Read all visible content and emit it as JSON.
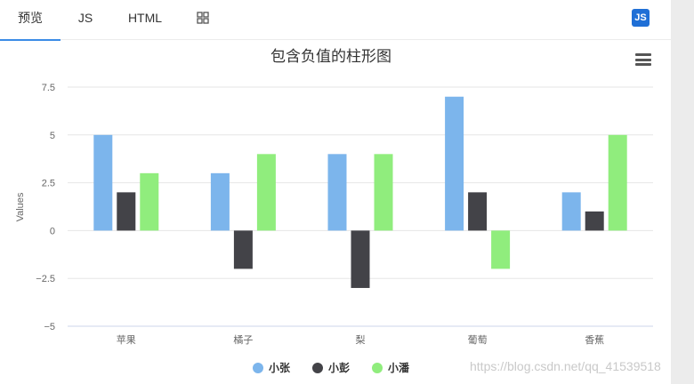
{
  "tabs": [
    {
      "label": "预览",
      "active": true
    },
    {
      "label": "JS",
      "active": false
    },
    {
      "label": "HTML",
      "active": false
    },
    {
      "label": "",
      "icon": "grid-icon",
      "active": false
    }
  ],
  "badge": {
    "label": "JS",
    "color": "#1f6fd6"
  },
  "menu_icon": "menu-icon",
  "watermark": "https://blog.csdn.net/qq_41539518",
  "chart_data": {
    "type": "bar",
    "title": "包含负值的柱形图",
    "ylabel": "Values",
    "xlabel": "",
    "categories": [
      "苹果",
      "橘子",
      "梨",
      "葡萄",
      "香蕉"
    ],
    "ylim": [
      -5,
      7.5
    ],
    "yticks": [
      -5,
      -2.5,
      0,
      2.5,
      5,
      7.5
    ],
    "ytick_labels": [
      "−5",
      "−2.5",
      "0",
      "2.5",
      "5",
      "7.5"
    ],
    "grid": true,
    "legend": "bottom-center",
    "series": [
      {
        "name": "小张",
        "values": [
          5,
          3,
          4,
          7,
          2
        ],
        "color": "#7cb5ec"
      },
      {
        "name": "小彭",
        "values": [
          2,
          -2,
          -3,
          2,
          1
        ],
        "color": "#434348"
      },
      {
        "name": "小潘",
        "values": [
          3,
          4,
          4,
          -2,
          5
        ],
        "color": "#90ed7d"
      }
    ]
  }
}
